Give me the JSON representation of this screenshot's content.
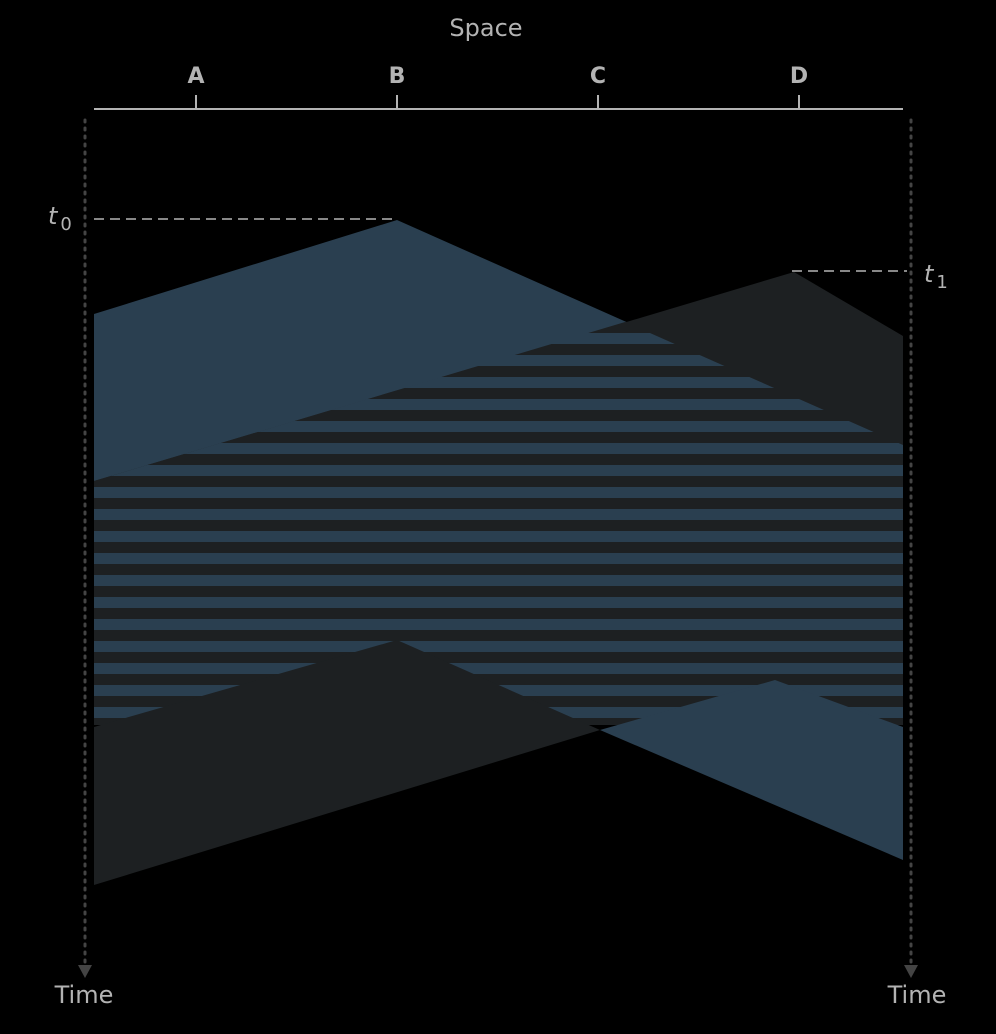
{
  "axis": {
    "title": "Space",
    "ticks": [
      "A",
      "B",
      "C",
      "D"
    ]
  },
  "time_labels": {
    "left": "Time",
    "right": "Time"
  },
  "markers": {
    "t0": {
      "var": "t",
      "sub": "0"
    },
    "t1": {
      "var": "t",
      "sub": "1"
    }
  },
  "colors": {
    "background": "#000000",
    "blue": "#2a3f50",
    "dark": "#1d2022",
    "axis": "#b3b3b3",
    "dotted": "#444444",
    "dashed": "#888888"
  }
}
